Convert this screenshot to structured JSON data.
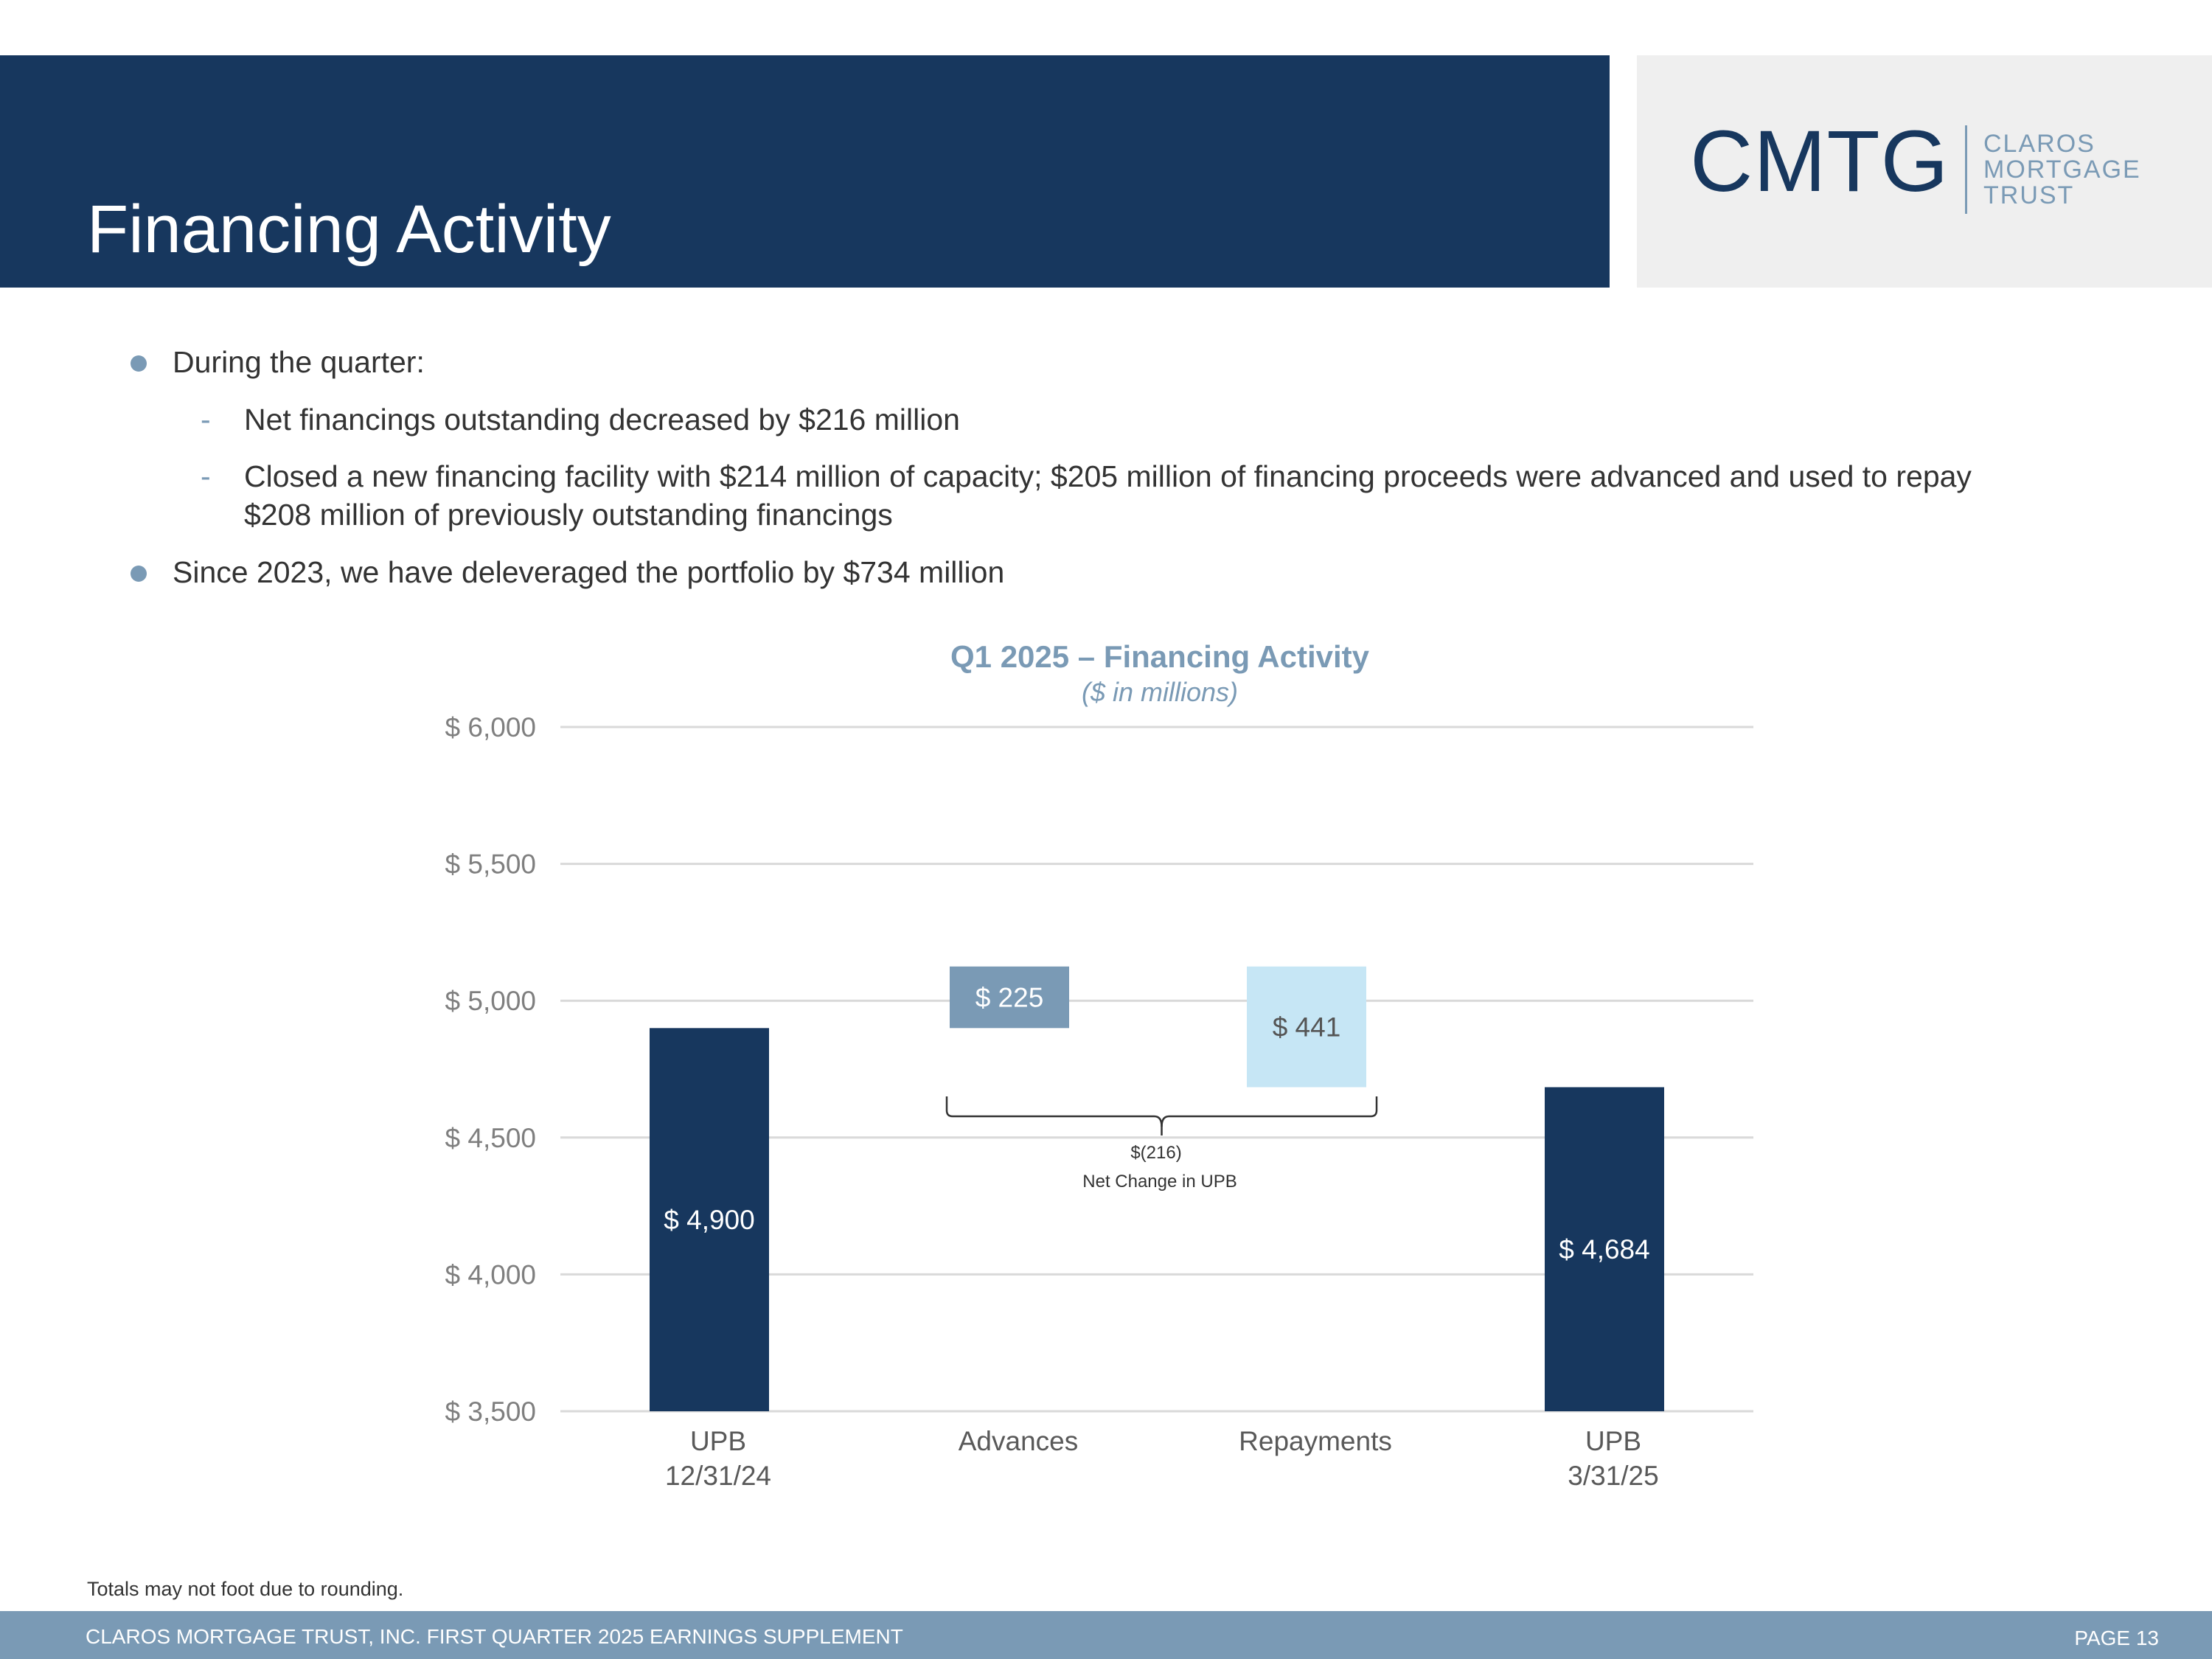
{
  "header": {
    "title": "Financing Activity",
    "logo_mark": "CMTG",
    "logo_words": [
      "CLAROS",
      "MORTGAGE",
      "TRUST"
    ]
  },
  "bullets": {
    "b1": "During the quarter:",
    "b1_sub": [
      "Net financings outstanding decreased by $216 million",
      "Closed a new financing facility with $214 million of capacity; $205 million of financing proceeds were advanced and used to repay $208 million of previously outstanding financings"
    ],
    "b2": "Since 2023, we have deleveraged the portfolio by $734 million",
    "dash": "-"
  },
  "chart_data": {
    "type": "waterfall",
    "title": "Q1 2025 – Financing Activity",
    "subtitle": "($ in millions)",
    "ylim": [
      3500,
      6000
    ],
    "y_ticks": [
      3500,
      4000,
      4500,
      5000,
      5500,
      6000
    ],
    "y_tick_labels": [
      "$ 3,500",
      "$ 4,000",
      "$ 4,500",
      "$ 5,000",
      "$ 5,500",
      "$ 6,000"
    ],
    "grid": true,
    "bars": [
      {
        "category": [
          "UPB",
          "12/31/24"
        ],
        "base": 3500,
        "top": 4900,
        "label": "$ 4,900",
        "color": "#17375e",
        "label_color": "#ffffff"
      },
      {
        "category": [
          "Advances"
        ],
        "base": 4900,
        "top": 5125,
        "label": "$ 225",
        "color": "#7a9ab5",
        "label_color": "#ffffff"
      },
      {
        "category": [
          "Repayments"
        ],
        "base": 4684,
        "top": 5125,
        "label": "$ 441",
        "color": "#c6e6f5",
        "label_color": "#555555"
      },
      {
        "category": [
          "UPB",
          "3/31/25"
        ],
        "base": 3500,
        "top": 4684,
        "label": "$ 4,684",
        "color": "#17375e",
        "label_color": "#ffffff"
      }
    ],
    "annotation": {
      "value": "$(216)",
      "text": "Net Change in UPB",
      "spans": [
        1,
        2
      ]
    }
  },
  "footer": {
    "note": "Totals may not foot due to rounding.",
    "left": "CLAROS MORTGAGE TRUST, INC. FIRST QUARTER 2025 EARNINGS SUPPLEMENT",
    "page": "PAGE 13"
  },
  "colors": {
    "navy": "#17375e",
    "steel": "#7a9ab5",
    "light_blue": "#c6e6f5"
  }
}
